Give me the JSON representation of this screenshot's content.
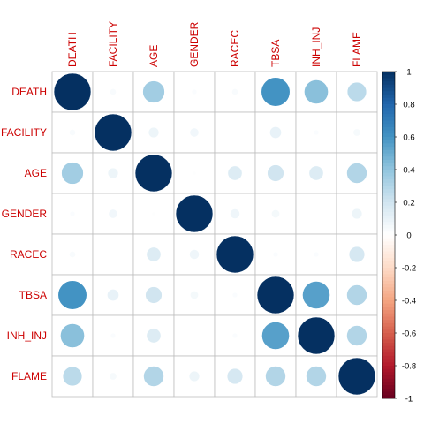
{
  "chart_data": {
    "type": "heatmap",
    "variables": [
      "DEATH",
      "FACILITY",
      "AGE",
      "GENDER",
      "RACEC",
      "TBSA",
      "INH_INJ",
      "FLAME"
    ],
    "matrix": [
      [
        1.0,
        0.03,
        0.35,
        0.02,
        0.03,
        0.6,
        0.42,
        0.27
      ],
      [
        0.03,
        1.0,
        0.08,
        0.06,
        0.0,
        0.1,
        0.02,
        0.04
      ],
      [
        0.35,
        0.08,
        1.0,
        0.01,
        0.15,
        0.2,
        0.15,
        0.3
      ],
      [
        0.02,
        0.06,
        0.01,
        1.0,
        0.07,
        0.05,
        0.0,
        0.08
      ],
      [
        0.03,
        0.0,
        0.15,
        0.07,
        1.0,
        0.02,
        0.02,
        0.18
      ],
      [
        0.6,
        0.1,
        0.2,
        0.05,
        0.02,
        1.0,
        0.55,
        0.3
      ],
      [
        0.42,
        0.02,
        0.15,
        0.0,
        0.02,
        0.55,
        1.0,
        0.3
      ],
      [
        0.27,
        0.04,
        0.3,
        0.08,
        0.18,
        0.3,
        0.3,
        1.0
      ]
    ],
    "value_range": [
      -1,
      1
    ],
    "legend_ticks": [
      "1",
      "0.8",
      "0.6",
      "0.4",
      "0.2",
      "0",
      "-0.2",
      "-0.4",
      "-0.6",
      "-0.8",
      "-1"
    ],
    "legend_placement": "right",
    "colors": {
      "negative": "#67001f",
      "neutral": "#ffffff",
      "positive": "#053061",
      "labels": "#cc0000",
      "grid": "#bebebe"
    },
    "title": "",
    "xlabel": "",
    "ylabel": ""
  }
}
